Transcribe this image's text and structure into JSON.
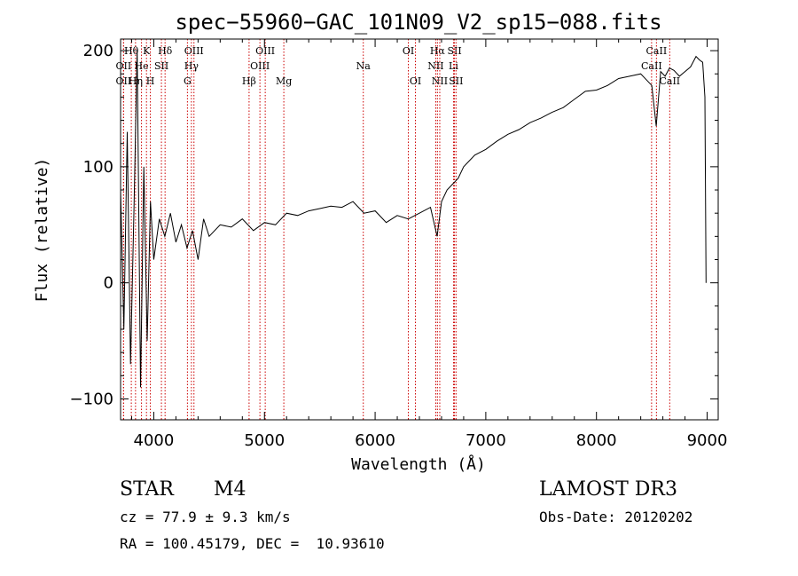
{
  "chart_data": {
    "type": "line",
    "title": "spec−55960−GAC_101N09_V2_sp15−088.fits",
    "xlabel": "Wavelength (Å)",
    "ylabel": "Flux (relative)",
    "xlim": [
      3700,
      9100
    ],
    "ylim": [
      -118,
      210
    ],
    "x_ticks": [
      4000,
      5000,
      6000,
      7000,
      8000,
      9000
    ],
    "x_tick_labels": [
      "4000",
      "5000",
      "6000",
      "7000",
      "8000",
      "9000"
    ],
    "y_ticks": [
      -100,
      0,
      100,
      200
    ],
    "y_tick_labels": [
      "−100",
      "0",
      "100",
      "200"
    ],
    "series": [
      {
        "name": "spectrum",
        "color": "#000000",
        "x": [
          3700,
          3730,
          3760,
          3790,
          3820,
          3850,
          3880,
          3910,
          3940,
          3970,
          4000,
          4050,
          4100,
          4150,
          4200,
          4250,
          4300,
          4350,
          4400,
          4450,
          4500,
          4600,
          4700,
          4800,
          4900,
          5000,
          5100,
          5200,
          5300,
          5400,
          5500,
          5600,
          5700,
          5800,
          5900,
          6000,
          6100,
          6200,
          6300,
          6400,
          6500,
          6560,
          6600,
          6650,
          6700,
          6750,
          6800,
          6900,
          7000,
          7100,
          7200,
          7300,
          7400,
          7500,
          7600,
          7700,
          7800,
          7900,
          8000,
          8100,
          8200,
          8300,
          8400,
          8500,
          8540,
          8580,
          8620,
          8660,
          8700,
          8750,
          8800,
          8850,
          8900,
          8930,
          8960,
          8980,
          8990
        ],
        "values": [
          80,
          -40,
          130,
          -70,
          60,
          200,
          -90,
          100,
          -50,
          70,
          20,
          55,
          40,
          60,
          35,
          50,
          30,
          45,
          20,
          55,
          40,
          50,
          48,
          55,
          45,
          52,
          50,
          60,
          58,
          62,
          64,
          66,
          65,
          70,
          60,
          62,
          52,
          58,
          55,
          60,
          65,
          40,
          70,
          80,
          85,
          90,
          100,
          110,
          115,
          122,
          128,
          132,
          138,
          142,
          147,
          151,
          158,
          165,
          166,
          170,
          176,
          178,
          180,
          170,
          135,
          182,
          178,
          185,
          183,
          178,
          182,
          186,
          195,
          192,
          190,
          160,
          0
        ]
      }
    ],
    "line_markers": [
      {
        "label": "Hθ",
        "x": 3797,
        "row": 1
      },
      {
        "label": "OII",
        "x": 3727,
        "row": 2
      },
      {
        "label": "OII",
        "x": 3727,
        "row": 3
      },
      {
        "label": "He",
        "x": 3889,
        "row": 2
      },
      {
        "label": "Hη",
        "x": 3835,
        "row": 3
      },
      {
        "label": "K",
        "x": 3934,
        "row": 1
      },
      {
        "label": "H",
        "x": 3969,
        "row": 3
      },
      {
        "label": "SII",
        "x": 4069,
        "row": 2
      },
      {
        "label": "Hδ",
        "x": 4102,
        "row": 1
      },
      {
        "label": "OIII",
        "x": 4363,
        "row": 1
      },
      {
        "label": "Hγ",
        "x": 4340,
        "row": 2
      },
      {
        "label": "G",
        "x": 4304,
        "row": 3
      },
      {
        "label": "Hβ",
        "x": 4861,
        "row": 3
      },
      {
        "label": "OIII",
        "x": 5007,
        "row": 1
      },
      {
        "label": "OIII",
        "x": 4959,
        "row": 2
      },
      {
        "label": "Mg",
        "x": 5175,
        "row": 3
      },
      {
        "label": "Na",
        "x": 5893,
        "row": 2
      },
      {
        "label": "OI",
        "x": 6300,
        "row": 1
      },
      {
        "label": "OI",
        "x": 6364,
        "row": 3
      },
      {
        "label": "Hα",
        "x": 6563,
        "row": 1
      },
      {
        "label": "NII",
        "x": 6548,
        "row": 2
      },
      {
        "label": "NII",
        "x": 6584,
        "row": 3
      },
      {
        "label": "SII",
        "x": 6717,
        "row": 1
      },
      {
        "label": "Li",
        "x": 6708,
        "row": 2
      },
      {
        "label": "SII",
        "x": 6731,
        "row": 3
      },
      {
        "label": "CaII",
        "x": 8542,
        "row": 1
      },
      {
        "label": "CaII",
        "x": 8498,
        "row": 2
      },
      {
        "label": "CaII",
        "x": 8662,
        "row": 3
      }
    ],
    "grid": false,
    "marker_color": "#cc0000"
  },
  "info": {
    "type_label": "STAR",
    "subclass": "M4",
    "cz_text": "cz = 77.9 ± 9.3 km/s",
    "coords_text": "RA = 100.45179, DEC =  10.93610",
    "survey": "LAMOST DR3",
    "obs_date": "Obs-Date: 20120202"
  }
}
